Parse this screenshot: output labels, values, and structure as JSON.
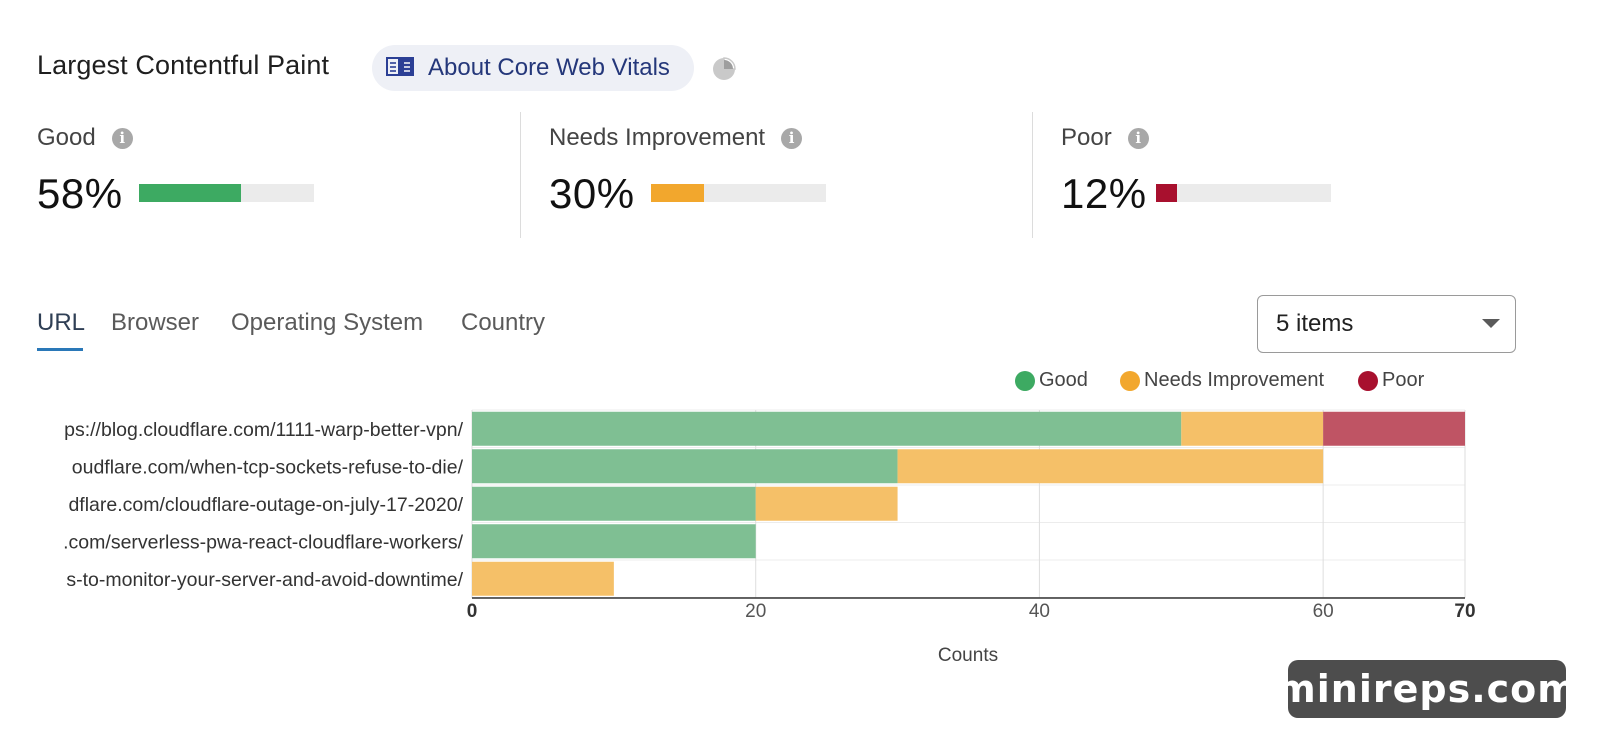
{
  "header": {
    "title": "Largest Contentful Paint",
    "about_link_label": "About Core Web Vitals",
    "about_icon": "book-icon",
    "pie_icon": "pie-chart-icon"
  },
  "metrics": [
    {
      "label": "Good",
      "value": "58%",
      "fraction": 0.58,
      "color": "#3daa62"
    },
    {
      "label": "Needs Improvement",
      "value": "30%",
      "fraction": 0.3,
      "color": "#f2a72d"
    },
    {
      "label": "Poor",
      "value": "12%",
      "fraction": 0.12,
      "color": "#a8102e"
    }
  ],
  "tabs": [
    {
      "label": "URL",
      "active": true
    },
    {
      "label": "Browser",
      "active": false
    },
    {
      "label": "Operating System",
      "active": false
    },
    {
      "label": "Country",
      "active": false
    }
  ],
  "items_select": {
    "value": "5 items"
  },
  "legend": [
    {
      "label": "Good",
      "color": "#3daa62"
    },
    {
      "label": "Needs Improvement",
      "color": "#f2a72d"
    },
    {
      "label": "Poor",
      "color": "#a8102e"
    }
  ],
  "watermark": "minireps.com",
  "chart_data": {
    "type": "bar",
    "orientation": "horizontal",
    "stacked": true,
    "categories": [
      "ps://blog.cloudflare.com/1111-warp-better-vpn/",
      "oudflare.com/when-tcp-sockets-refuse-to-die/",
      "dflare.com/cloudflare-outage-on-july-17-2020/",
      ".com/serverless-pwa-react-cloudflare-workers/",
      "s-to-monitor-your-server-and-avoid-downtime/"
    ],
    "series": [
      {
        "name": "Good",
        "color": "#7fbf93",
        "values": [
          50,
          30,
          20,
          20,
          0
        ]
      },
      {
        "name": "Needs Improvement",
        "color": "#f5c068",
        "values": [
          10,
          30,
          10,
          0,
          10
        ]
      },
      {
        "name": "Poor",
        "color": "#bf5464",
        "values": [
          10,
          0,
          0,
          0,
          0
        ]
      }
    ],
    "xlabel": "Counts",
    "xlim": [
      0,
      70
    ],
    "xticks": [
      "0",
      "20",
      "40",
      "60",
      "70"
    ],
    "grid": true,
    "legend_position": "top-right"
  }
}
